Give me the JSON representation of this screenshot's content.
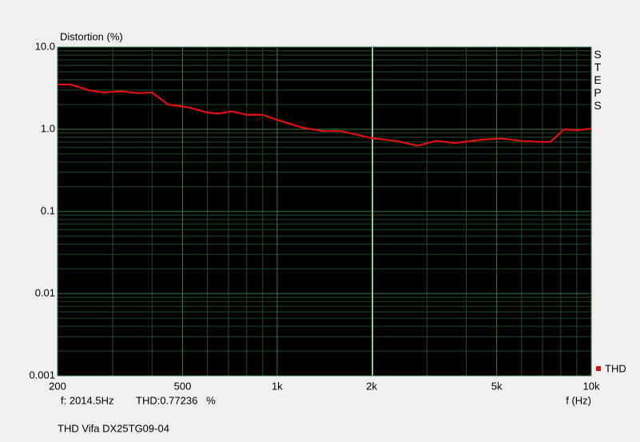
{
  "chart_data": {
    "type": "line",
    "title": "Distortion (%)",
    "x_label": "f (Hz)",
    "side_label": "STEPS",
    "footer": "THD Vifa DX25TG09-04",
    "readout": {
      "frequency": "f: 2014.5Hz",
      "thd": "THD:0.77236   %"
    },
    "cursor": {
      "x": 2014.5,
      "color": "#e4f4c8"
    },
    "xlog": true,
    "ylog": true,
    "grid": true,
    "legend": "bottom-right",
    "xlim": [
      200,
      10000
    ],
    "ylim": [
      0.001,
      10
    ],
    "xticks": [
      200,
      500,
      {
        "value": 1000,
        "label": "1k"
      },
      {
        "value": 2000,
        "label": "2k"
      },
      {
        "value": 5000,
        "label": "5k"
      },
      {
        "value": 10000,
        "label": "10k"
      }
    ],
    "yticks": [
      {
        "value": 0.001,
        "label": "0.001"
      },
      0.01,
      0.1,
      {
        "value": 1,
        "label": "1.0"
      },
      {
        "value": 10,
        "label": "10.0"
      }
    ],
    "xminor": [
      300,
      400,
      600,
      700,
      800,
      900,
      3000,
      4000,
      6000,
      7000,
      8000,
      9000
    ],
    "yminor": [
      0.002,
      0.003,
      0.004,
      0.005,
      0.006,
      0.007,
      0.008,
      0.009,
      0.02,
      0.03,
      0.04,
      0.05,
      0.06,
      0.07,
      0.08,
      0.09,
      0.2,
      0.3,
      0.4,
      0.5,
      0.6,
      0.7,
      0.8,
      0.9,
      2,
      3,
      4,
      5,
      6,
      7,
      8,
      9
    ],
    "x": [
      200,
      220,
      250,
      280,
      320,
      360,
      400,
      450,
      520,
      600,
      650,
      720,
      800,
      900,
      1000,
      1200,
      1400,
      1600,
      2000,
      2400,
      2800,
      3200,
      3700,
      4500,
      5200,
      6000,
      7000,
      7400,
      8200,
      9000,
      10000
    ],
    "series": [
      {
        "name": "THD",
        "color": "#e01010",
        "values": [
          3.5,
          3.5,
          3.0,
          2.8,
          2.9,
          2.75,
          2.8,
          2.0,
          1.85,
          1.6,
          1.55,
          1.65,
          1.5,
          1.5,
          1.3,
          1.05,
          0.95,
          0.95,
          0.78,
          0.72,
          0.63,
          0.72,
          0.68,
          0.75,
          0.77,
          0.72,
          0.7,
          0.7,
          1.0,
          0.97,
          1.02
        ]
      }
    ]
  }
}
